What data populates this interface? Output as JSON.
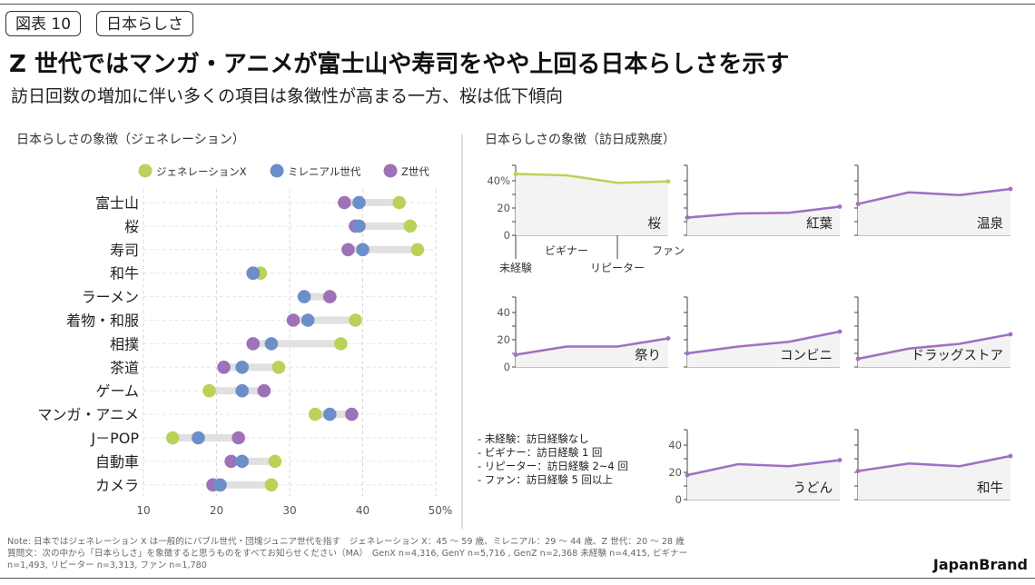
{
  "header": {
    "figure_tag": "図表 10",
    "topic_tag": "日本らしさ",
    "title": "Z 世代ではマンガ・アニメが富士山や寿司をやや上回る日本らしさを示す",
    "subtitle": "訪日回数の増加に伴い多くの項目は象徴性が高まる一方、桜は低下傾向"
  },
  "colors": {
    "genx": "#b9d35a",
    "millennial": "#6d8fc9",
    "genz": "#9e72b8",
    "line": "#a070c2",
    "line_green": "#b9d35a",
    "fill": "#f3f3f3"
  },
  "chart_data": [
    {
      "type": "dot-range",
      "title": "日本らしさの象徴（ジェネレーション）",
      "legend": [
        "ジェネレーションX",
        "ミレニアル世代",
        "Z世代"
      ],
      "categories": [
        "富士山",
        "桜",
        "寿司",
        "和牛",
        "ラーメン",
        "着物・和服",
        "相撲",
        "茶道",
        "ゲーム",
        "マンガ・アニメ",
        "J－POP",
        "自動車",
        "カメラ"
      ],
      "series": [
        {
          "name": "ジェネレーションX",
          "values": [
            45,
            46.5,
            47.5,
            26,
            35.5,
            39,
            37,
            28.5,
            19,
            33.5,
            14,
            28,
            27.5
          ]
        },
        {
          "name": "ミレニアル世代",
          "values": [
            39.5,
            39.5,
            40,
            25,
            32,
            32.5,
            27.5,
            23.5,
            23.5,
            35.5,
            17.5,
            23.5,
            20.5
          ]
        },
        {
          "name": "Z世代",
          "values": [
            37.5,
            39,
            38,
            25,
            35.5,
            30.5,
            25,
            21,
            26.5,
            38.5,
            23,
            22,
            19.5
          ]
        }
      ],
      "xlim": [
        10,
        50
      ],
      "xticks": [
        "10",
        "20",
        "30",
        "40",
        "50%"
      ]
    },
    {
      "type": "line",
      "title": "日本らしさの象徴（訪日成熟度）",
      "x": [
        "未経験",
        "ビギナー",
        "リピーター",
        "ファン"
      ],
      "ylim": [
        0,
        45
      ],
      "yticks_first": [
        "0",
        "20",
        "40%"
      ],
      "yticks": [
        "0",
        "20",
        "40"
      ],
      "panels": [
        {
          "name": "桜",
          "values": [
            45,
            44,
            38.5,
            39.5
          ]
        },
        {
          "name": "紅葉",
          "values": [
            13,
            16,
            16.5,
            21
          ]
        },
        {
          "name": "温泉",
          "values": [
            23,
            31.5,
            29.5,
            34
          ]
        },
        {
          "name": "祭り",
          "values": [
            9,
            15,
            15,
            21
          ]
        },
        {
          "name": "コンビニ",
          "values": [
            10,
            15,
            18.5,
            26
          ]
        },
        {
          "name": "ドラッグストア",
          "values": [
            6,
            13.5,
            17,
            24
          ]
        },
        {
          "name": "うどん",
          "values": [
            18,
            26,
            24.5,
            29
          ]
        },
        {
          "name": "和牛",
          "values": [
            21,
            26.5,
            24.5,
            32
          ]
        }
      ]
    }
  ],
  "definitions": [
    "- 未経験：訪日経験なし",
    "- ビギナー：訪日経験 1 回",
    "- リピーター：訪日経験 2~4 回",
    "- ファン：訪日経験 5 回以上"
  ],
  "notes": [
    "Note: 日本ではジェネレーション X は一般的にバブル世代・団塊ジュニア世代を指す　ジェネレーション X：45 ～ 59 歳、ミレニアル：29 ～ 44 歳、Z 世代：20 ～ 28 歳",
    "質問文：次の中から「日本らしさ」を象徴すると思うものをすべてお知らせください（MA）　GenX n=4,316, GenY n=5,716 , GenZ n=2,368  未経験 n=4,415, ビギナー",
    "n=1,493, リピーター n=3,313, ファン n=1,780"
  ],
  "brand": "JapanBrand"
}
